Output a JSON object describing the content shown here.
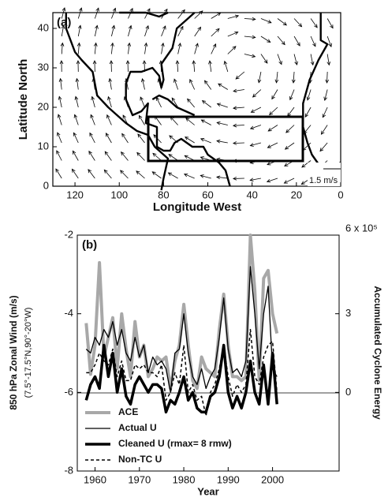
{
  "chart_data": [
    {
      "type": "map",
      "title": "(a)",
      "xlabel": "Longitude West",
      "ylabel": "Latitude North",
      "xlim": [
        130,
        0
      ],
      "ylim": [
        0,
        44
      ],
      "xticks": [
        120,
        100,
        80,
        60,
        40,
        20,
        0
      ],
      "yticks": [
        0,
        10,
        20,
        30,
        40
      ],
      "annotation": "1.5 m/s"
    },
    {
      "type": "line",
      "title": "(b)",
      "xlabel": "Year",
      "ylabel": "850 hPa Zonal Wind (m/s)",
      "ylabel2": "(7.5°-17.5°N,90°-20°W)",
      "y2label": "Accumulated Cyclone Energy",
      "xlim": [
        1956,
        2015
      ],
      "xticks": [
        1960,
        1970,
        1980,
        1990,
        2000
      ],
      "ylim": [
        -8,
        -2
      ],
      "yticks": [
        -8,
        -6,
        -4,
        -2
      ],
      "y2lim": [
        -3,
        6
      ],
      "y2ticks": [
        0,
        3,
        {
          "value": 6,
          "label": "6 x 10⁵"
        }
      ],
      "legend": "lower left",
      "x": [
        1958,
        1959,
        1960,
        1961,
        1962,
        1963,
        1964,
        1965,
        1966,
        1967,
        1968,
        1969,
        1970,
        1971,
        1972,
        1973,
        1974,
        1975,
        1976,
        1977,
        1978,
        1979,
        1980,
        1981,
        1982,
        1983,
        1984,
        1985,
        1986,
        1987,
        1988,
        1989,
        1990,
        1991,
        1992,
        1993,
        1994,
        1995,
        1996,
        1997,
        1998,
        1999,
        2000,
        2001
      ],
      "series": [
        {
          "name": "ACE",
          "color": "#a8a8a8",
          "linewidth": 4,
          "linestyle": "solid",
          "axis": "y2",
          "values": [
            2.64,
            0.69,
            1.8,
            4.95,
            1.35,
            2.1,
            2.85,
            0.9,
            3.0,
            1.65,
            0.6,
            2.7,
            1.35,
            1.8,
            0.6,
            0.9,
            1.35,
            1.2,
            1.35,
            0.15,
            1.2,
            1.8,
            3.36,
            1.8,
            0.45,
            0.15,
            1.35,
            0.9,
            0.75,
            0.6,
            2.4,
            3.75,
            1.8,
            0.6,
            0.6,
            0.45,
            0.6,
            6.0,
            3.9,
            0.45,
            4.35,
            4.65,
            3.0,
            2.25
          ]
        },
        {
          "name": "Actual U",
          "color": "#000000",
          "linewidth": 1.3,
          "linestyle": "solid",
          "values": [
            -4.9,
            -5.0,
            -4.6,
            -4.8,
            -4.4,
            -4.6,
            -4.2,
            -4.8,
            -4.4,
            -5.0,
            -5.2,
            -4.6,
            -5.1,
            -4.8,
            -5.5,
            -5.1,
            -5.3,
            -5.2,
            -5.4,
            -6.0,
            -5.0,
            -4.9,
            -4.0,
            -5.0,
            -5.6,
            -5.8,
            -5.4,
            -5.9,
            -5.6,
            -5.4,
            -4.6,
            -3.6,
            -4.9,
            -5.5,
            -5.4,
            -5.6,
            -5.2,
            -2.8,
            -4.0,
            -5.4,
            -4.0,
            -3.3,
            -5.4,
            -5.6
          ]
        },
        {
          "name": "Cleaned U (rmax= 8 rmw)",
          "color": "#000000",
          "linewidth": 3.5,
          "linestyle": "solid",
          "values": [
            -6.2,
            -5.8,
            -5.6,
            -5.9,
            -4.8,
            -5.6,
            -5.0,
            -6.0,
            -5.4,
            -6.1,
            -6.3,
            -5.8,
            -5.6,
            -5.8,
            -6.0,
            -5.8,
            -5.8,
            -5.9,
            -6.5,
            -6.2,
            -6.3,
            -6.0,
            -5.6,
            -6.2,
            -6.0,
            -6.4,
            -6.5,
            -6.5,
            -6.1,
            -6.0,
            -5.6,
            -4.8,
            -6.0,
            -6.4,
            -6.1,
            -6.4,
            -6.0,
            -5.2,
            -6.0,
            -6.3,
            -5.3,
            -6.3,
            -5.0,
            -6.3
          ]
        },
        {
          "name": "Non-TC U",
          "color": "#000000",
          "linewidth": 1.5,
          "linestyle": "dashed",
          "values": [
            -5.5,
            -5.5,
            -5.3,
            -5.0,
            -5.2,
            -5.3,
            -4.9,
            -5.6,
            -5.2,
            -5.7,
            -5.7,
            -5.3,
            -5.4,
            -5.3,
            -5.5,
            -5.5,
            -5.6,
            -5.3,
            -6.2,
            -6.0,
            -5.5,
            -5.8,
            -4.8,
            -6.0,
            -5.8,
            -6.2,
            -6.1,
            -6.6,
            -6.0,
            -5.8,
            -5.4,
            -4.8,
            -5.6,
            -6.1,
            -5.8,
            -6.0,
            -5.8,
            -4.4,
            -5.6,
            -5.8,
            -5.1,
            -4.8,
            -4.7,
            -6.0
          ]
        }
      ]
    }
  ]
}
